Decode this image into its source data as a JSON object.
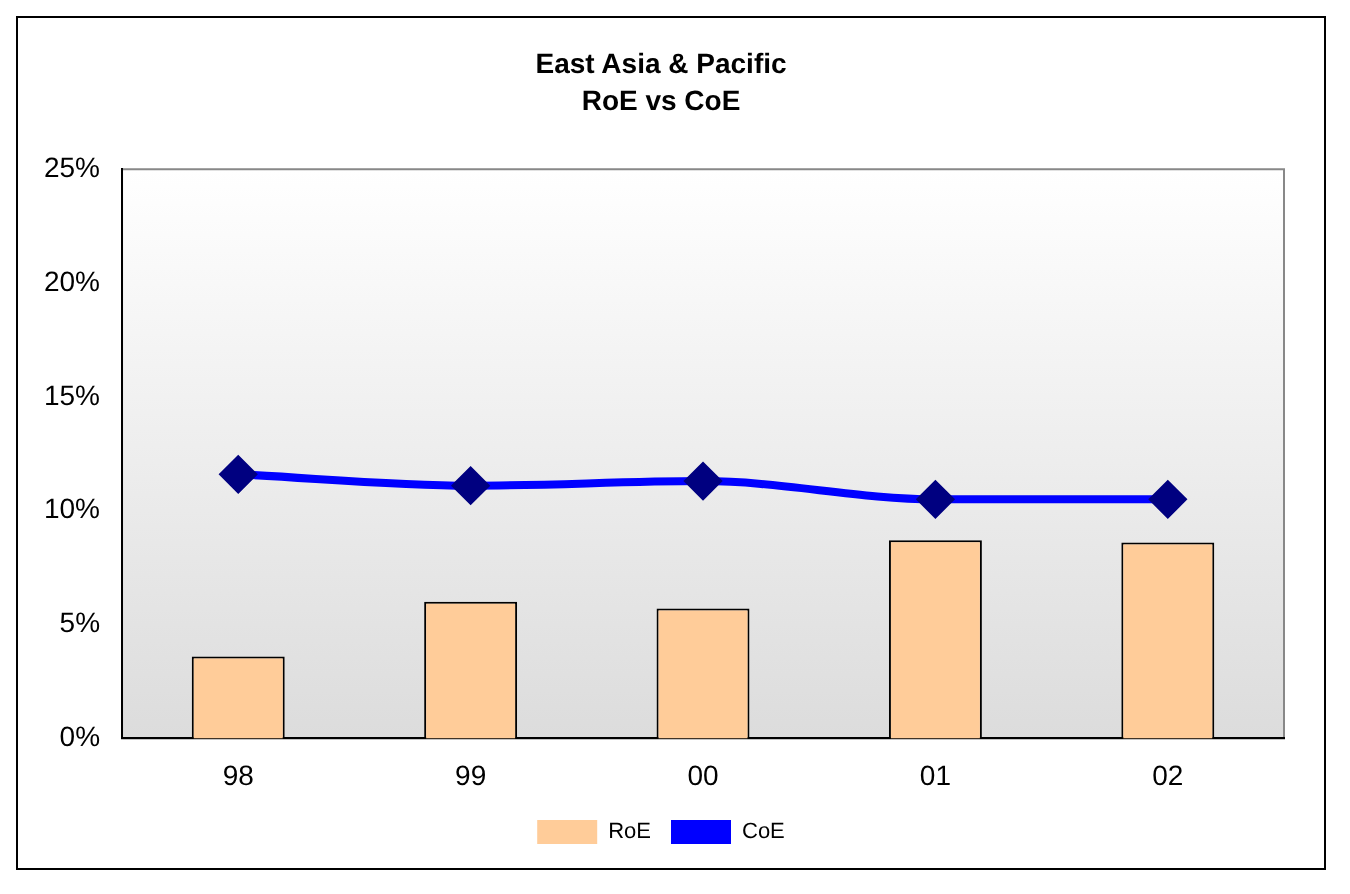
{
  "chart_data": {
    "type": "bar",
    "title": "East Asia & Pacific",
    "subtitle": "RoE vs CoE",
    "categories": [
      "98",
      "99",
      "00",
      "01",
      "02"
    ],
    "series": [
      {
        "name": "RoE",
        "color": "#ffcc99",
        "values": [
          3.6,
          6.0,
          5.7,
          8.7,
          8.6
        ]
      },
      {
        "name": "CoE",
        "type": "line",
        "color": "#0000ff",
        "values": [
          11.6,
          11.1,
          11.3,
          10.5,
          10.5
        ]
      }
    ],
    "ylim": [
      0,
      25
    ],
    "yticks": [
      {
        "value": 0,
        "label": "0%"
      },
      {
        "value": 5,
        "label": "5%"
      },
      {
        "value": 10,
        "label": "10%"
      },
      {
        "value": 15,
        "label": "15%"
      },
      {
        "value": 20,
        "label": "20%"
      },
      {
        "value": 25,
        "label": "25%"
      }
    ],
    "grid": false,
    "legend": "bottom",
    "marker": "diamond"
  }
}
